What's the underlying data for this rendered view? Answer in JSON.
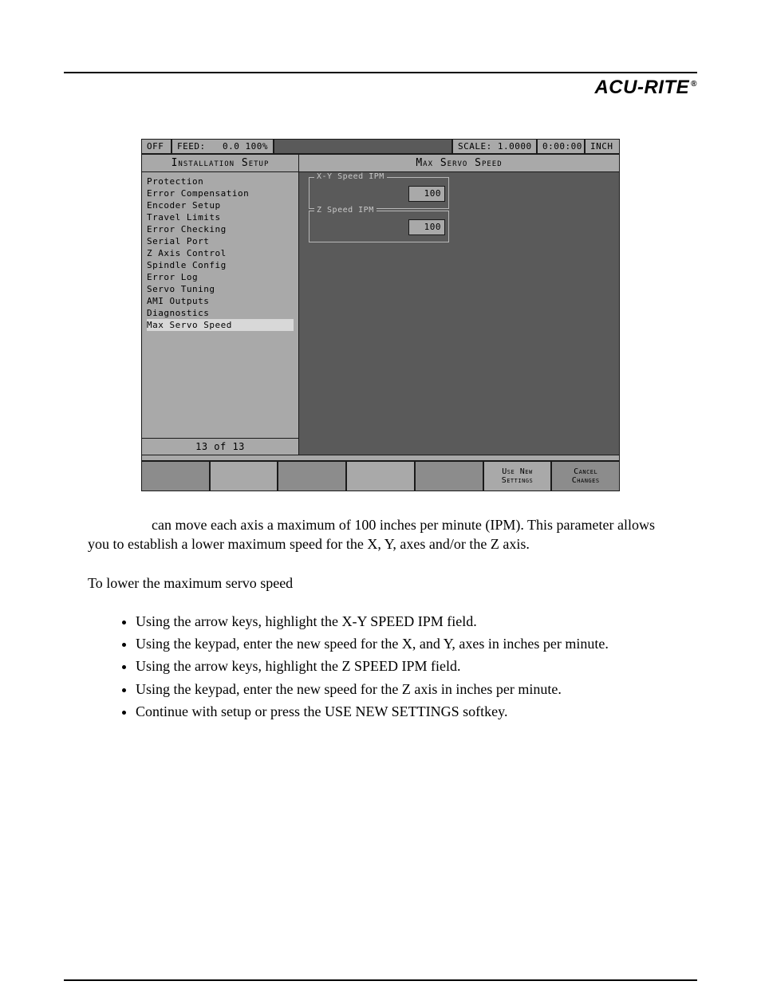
{
  "brand": "ACU-RITE",
  "brand_suffix": "®",
  "cnc": {
    "topbar": {
      "off": "OFF",
      "feed_label": "FEED:",
      "feed_value": "0.0 100%",
      "scale": "SCALE: 1.0000",
      "time": "0:00:00",
      "unit": "INCH"
    },
    "list": {
      "title": "Installation Setup",
      "items": [
        "Protection",
        "Error Compensation",
        "Encoder Setup",
        "Travel Limits",
        "Error Checking",
        "Serial Port",
        "Z Axis Control",
        "Spindle Config",
        "Error Log",
        "Servo Tuning",
        "AMI Outputs",
        "Diagnostics",
        "Max Servo Speed"
      ],
      "selected_index": 12,
      "footer": "13 of 13"
    },
    "form": {
      "title": "Max Servo Speed",
      "fields": [
        {
          "legend": "X-Y Speed IPM",
          "value": "100"
        },
        {
          "legend": "Z Speed IPM",
          "value": "100"
        }
      ]
    },
    "softkeys": {
      "use_new": "Use New\nSettings",
      "cancel": "Cancel\nChanges"
    }
  },
  "para1": "can move each axis a maximum of 100 inches per minute (IPM).  This parameter allows you to establish a lower maximum speed for the X, Y, axes and/or the Z axis.",
  "para2": "To lower the maximum servo speed",
  "bullets": [
    "Using the arrow keys, highlight the X-Y SPEED IPM field.",
    "Using the keypad, enter the new speed for the X, and Y, axes in inches per minute.",
    "Using the arrow keys, highlight the Z SPEED IPM field.",
    "Using the keypad, enter the new speed for the Z axis in inches per minute.",
    "Continue with setup or press the USE NEW SETTINGS softkey."
  ]
}
